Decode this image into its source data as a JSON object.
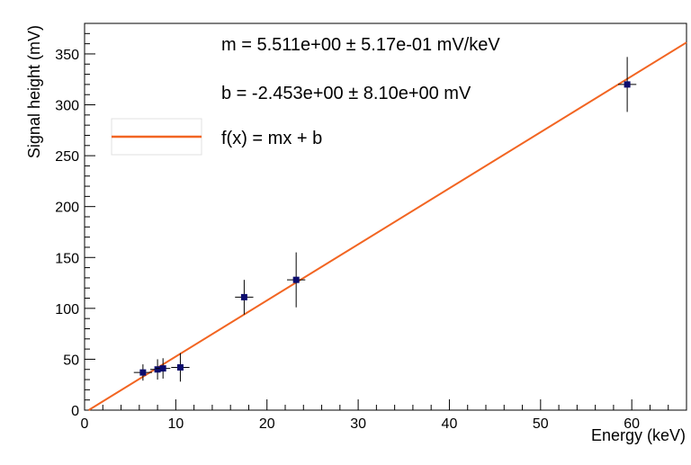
{
  "chart_data": {
    "type": "scatter",
    "title": "",
    "xlabel": "Energy (keV)",
    "ylabel": "Signal height (mV)",
    "xlim": [
      0,
      66
    ],
    "ylim": [
      0,
      380
    ],
    "x_ticks": [
      0,
      10,
      20,
      30,
      40,
      50,
      60
    ],
    "y_ticks": [
      0,
      50,
      100,
      150,
      200,
      250,
      300,
      350
    ],
    "grid": false,
    "points": [
      {
        "x": 6.4,
        "y": 37,
        "xerr": 1.0,
        "yerr": 8
      },
      {
        "x": 8.0,
        "y": 40,
        "xerr": 0.8,
        "yerr": 10
      },
      {
        "x": 8.6,
        "y": 41,
        "xerr": 0.8,
        "yerr": 10
      },
      {
        "x": 10.5,
        "y": 42,
        "xerr": 1.0,
        "yerr": 14
      },
      {
        "x": 17.5,
        "y": 111,
        "xerr": 1.0,
        "yerr": 17
      },
      {
        "x": 23.2,
        "y": 128,
        "xerr": 1.0,
        "yerr": 27
      },
      {
        "x": 59.5,
        "y": 320,
        "xerr": 1.0,
        "yerr": 27
      }
    ],
    "fit": {
      "m": 5.511,
      "b": -2.453,
      "color": "#f26522"
    },
    "marker_color": "#0c0c6e",
    "legend": {
      "position": "left-middle",
      "entries": [
        {
          "label": "f(x) = mx + b",
          "color": "#f26522"
        }
      ]
    },
    "annotations": [
      "m = 5.511e+00 ± 5.17e-01 mV/keV",
      "b = -2.453e+00 ± 8.10e+00 mV"
    ]
  }
}
